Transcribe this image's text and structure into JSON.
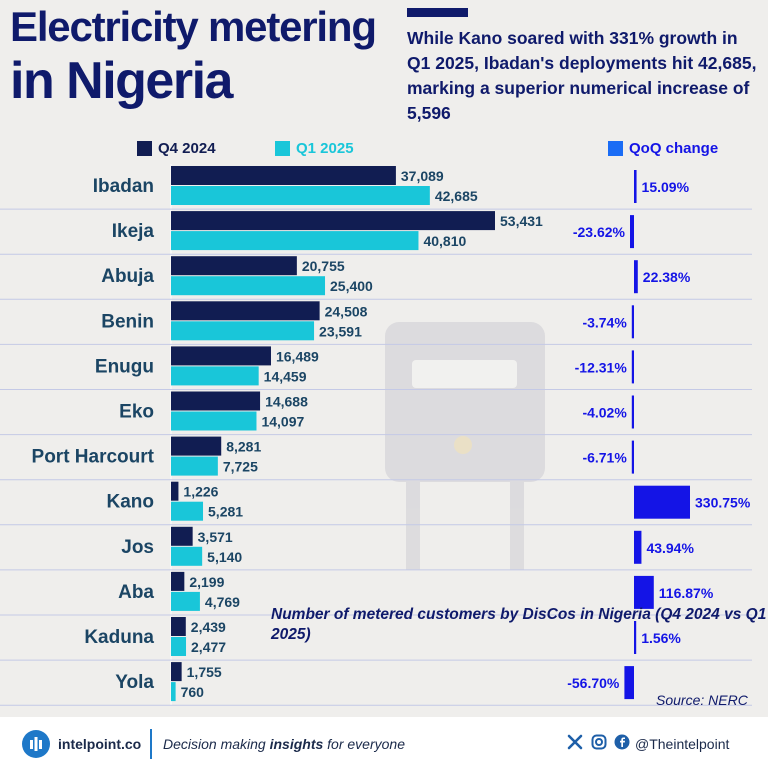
{
  "title": {
    "line1": "Electricity metering",
    "line2": "in Nigeria"
  },
  "subtitle": "While Kano soared with 331% growth in Q1 2025, Ibadan's deployments hit 42,685, marking a superior numerical increase of 5,596",
  "legend": {
    "q4": "Q4 2024",
    "q1": "Q1 2025",
    "qoq": "QoQ change"
  },
  "colors": {
    "title": "#0f1a6b",
    "q4": "#111d52",
    "q1": "#19c6d9",
    "qoq": "#1414e6",
    "text": "#1b4564"
  },
  "chart_data": {
    "type": "bar",
    "categories": [
      "Ibadan",
      "Ikeja",
      "Abuja",
      "Benin",
      "Enugu",
      "Eko",
      "Port Harcourt",
      "Kano",
      "Jos",
      "Aba",
      "Kaduna",
      "Yola"
    ],
    "series": [
      {
        "name": "Q4 2024",
        "values": [
          37089,
          53431,
          20755,
          24508,
          16489,
          14688,
          8281,
          1226,
          3571,
          2199,
          2439,
          1755
        ],
        "labels": [
          "37,089",
          "53,431",
          "20,755",
          "24,508",
          "16,489",
          "14,688",
          "8,281",
          "1,226",
          "3,571",
          "2,199",
          "2,439",
          "1,755"
        ]
      },
      {
        "name": "Q1 2025",
        "values": [
          42685,
          40810,
          25400,
          23591,
          14459,
          14097,
          7725,
          5281,
          5140,
          4769,
          2477,
          760
        ],
        "labels": [
          "42,685",
          "40,810",
          "25,400",
          "23,591",
          "14,459",
          "14,097",
          "7,725",
          "5,281",
          "5,140",
          "4,769",
          "2,477",
          "760"
        ]
      },
      {
        "name": "QoQ change",
        "values": [
          15.09,
          -23.62,
          22.38,
          -3.74,
          -12.31,
          -4.02,
          -6.71,
          330.75,
          43.94,
          116.87,
          1.56,
          -56.7
        ],
        "labels": [
          "15.09%",
          "-23.62%",
          "22.38%",
          "-3.74%",
          "-12.31%",
          "-4.02%",
          "-6.71%",
          "330.75%",
          "43.94%",
          "116.87%",
          "1.56%",
          "-56.70%"
        ]
      }
    ],
    "annotation": "Number of metered customers by DisCos in Nigeria (Q4 2024 vs Q1 2025)",
    "source": "Source: NERC"
  },
  "footer": {
    "brand": "intelpoint.co",
    "tagline_pre": "Decision making ",
    "tagline_bold": "insights",
    "tagline_post": " for everyone",
    "handle": "@Theintelpoint",
    "icons": [
      "intelpoint-logo-icon",
      "x-icon",
      "instagram-icon",
      "facebook-icon"
    ]
  }
}
